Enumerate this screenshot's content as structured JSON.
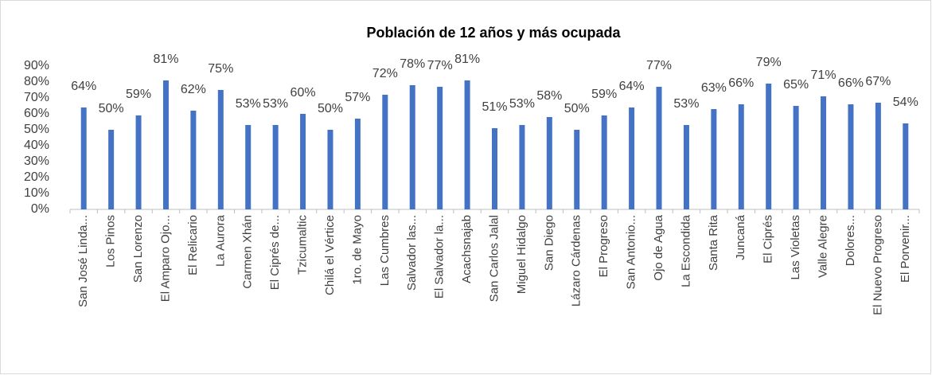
{
  "chart_data": {
    "type": "bar",
    "title": "Población de 12 años y más ocupada",
    "categories": [
      "San José Linda...",
      "Los Pinos",
      "San Lorenzo",
      "El Amparo Ojo...",
      "El Relicario",
      "La Aurora",
      "Carmen Xhán",
      "El Ciprés de...",
      "Tzicumaltic",
      "Chilá el Vértice",
      "1ro. de Mayo",
      "Las Cumbres",
      "Salvador las...",
      "El Salvador la...",
      "Acachsnajab",
      "San Carlos Jalal",
      "Miguel Hidalgo",
      "San Diego",
      "Lázaro Cárdenas",
      "El Progreso",
      "San Antonio...",
      "Ojo de Agua",
      "La Escondida",
      "Santa Rita",
      "Juncaná",
      "El Ciprés",
      "Las Violetas",
      "Valle Alegre",
      "Dolores...",
      "El Nuevo Progreso",
      "El Porvenir..."
    ],
    "values": [
      64,
      50,
      59,
      81,
      62,
      75,
      53,
      53,
      60,
      50,
      57,
      72,
      78,
      77,
      81,
      51,
      53,
      58,
      50,
      59,
      64,
      77,
      53,
      63,
      66,
      79,
      65,
      71,
      66,
      67,
      54
    ],
    "value_labels": [
      "64%",
      "50%",
      "59%",
      "81%",
      "62%",
      "75%",
      "53%",
      "53%",
      "60%",
      "50%",
      "57%",
      "72%",
      "78%",
      "77%",
      "81%",
      "51%",
      "53%",
      "58%",
      "50%",
      "59%",
      "64%",
      "77%",
      "53%",
      "63%",
      "66%",
      "79%",
      "65%",
      "71%",
      "66%",
      "67%",
      "54%"
    ],
    "color": "#4472c4",
    "ylim": [
      0,
      90
    ],
    "yticks": [
      {
        "value": 0,
        "label": "0%"
      },
      {
        "value": 10,
        "label": "10%"
      },
      {
        "value": 20,
        "label": "20%"
      },
      {
        "value": 30,
        "label": "30%"
      },
      {
        "value": 40,
        "label": "40%"
      },
      {
        "value": 50,
        "label": "50%"
      },
      {
        "value": 60,
        "label": "60%"
      },
      {
        "value": 70,
        "label": "70%"
      },
      {
        "value": 80,
        "label": "80%"
      },
      {
        "value": 90,
        "label": "90%"
      }
    ],
    "grid": false
  }
}
